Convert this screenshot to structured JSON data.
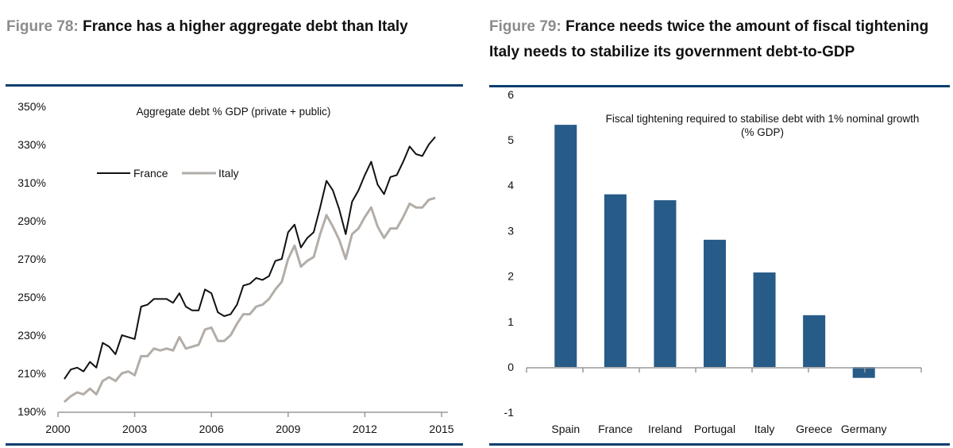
{
  "figures": {
    "left": {
      "number": "Figure 78:",
      "title": "France has a higher aggregate debt than Italy"
    },
    "right": {
      "number": "Figure 79:",
      "title": "France needs twice the amount of fiscal tightening Italy needs to stabilize its government debt-to-GDP"
    }
  },
  "colors": {
    "rule": "#0e3f6e",
    "france": "#111111",
    "italy": "#b3ada8",
    "bar": "#275b88",
    "axis": "#9a9a9a",
    "figure_number": "#8c8c8c"
  },
  "chart_data": [
    {
      "type": "line",
      "title": "Aggregate debt % GDP (private + public)",
      "xlabel": "",
      "ylabel": "",
      "x_start": 2000.0,
      "x_step": 0.25,
      "xlim": [
        2000,
        2015
      ],
      "ylim": [
        190,
        350
      ],
      "x_ticks": [
        "2000",
        "2003",
        "2006",
        "2009",
        "2012",
        "2015"
      ],
      "y_ticks": [
        "190%",
        "210%",
        "230%",
        "250%",
        "270%",
        "290%",
        "310%",
        "330%",
        "350%"
      ],
      "legend_position": "top-left",
      "grid": false,
      "series": [
        {
          "name": "France",
          "values": [
            207,
            212,
            213,
            211,
            216,
            213,
            226,
            224,
            220,
            230,
            229,
            228,
            245,
            246,
            249,
            249,
            249,
            247,
            252,
            245,
            243,
            243,
            254,
            252,
            242,
            240,
            241,
            246,
            256,
            257,
            260,
            259,
            261,
            269,
            270,
            284,
            288,
            276,
            281,
            284,
            297,
            311,
            306,
            296,
            283,
            300,
            306,
            314,
            321,
            309,
            304,
            313,
            314,
            321,
            329,
            325,
            324,
            330,
            334
          ]
        },
        {
          "name": "Italy",
          "values": [
            195,
            198,
            200,
            199,
            202,
            199,
            206,
            208,
            206,
            210,
            211,
            209,
            219,
            219,
            223,
            222,
            223,
            222,
            229,
            223,
            224,
            225,
            233,
            234,
            227,
            227,
            230,
            236,
            241,
            241,
            245,
            246,
            249,
            254,
            258,
            270,
            277,
            266,
            269,
            271,
            283,
            293,
            287,
            280,
            270,
            283,
            286,
            292,
            297,
            287,
            281,
            286,
            286,
            292,
            299,
            297,
            297,
            301,
            302
          ]
        }
      ]
    },
    {
      "type": "bar",
      "title": "Fiscal tightening required to stabilise debt with 1% nominal growth (% GDP)",
      "title_lines": [
        "Fiscal tightening required to stabilise debt with 1% nominal growth",
        "(% GDP)"
      ],
      "xlabel": "",
      "ylabel": "",
      "categories": [
        "Spain",
        "France",
        "Ireland",
        "Portugal",
        "Italy",
        "Greece",
        "Germany"
      ],
      "values": [
        5.33,
        3.8,
        3.67,
        2.8,
        2.08,
        1.14,
        -0.24
      ],
      "ylim": [
        -1,
        6
      ],
      "y_ticks": [
        "-1",
        "0",
        "1",
        "2",
        "3",
        "4",
        "5",
        "6"
      ],
      "grid": false
    }
  ]
}
